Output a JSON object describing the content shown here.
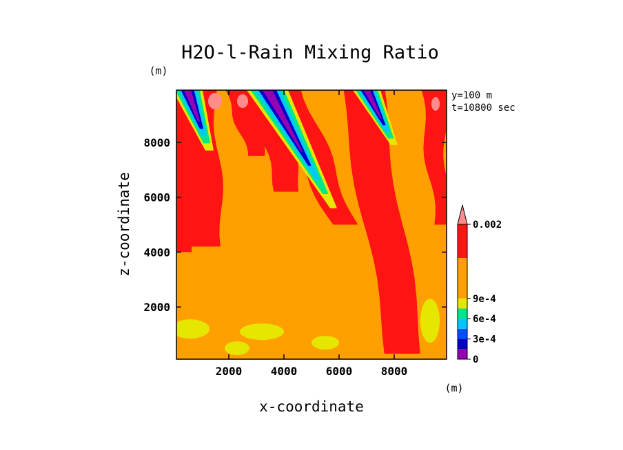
{
  "chart_data": {
    "type": "heatmap",
    "title": "H2O-l-Rain Mixing Ratio",
    "xlabel": "x-coordinate",
    "ylabel": "z-coordinate",
    "x_unit": "(m)",
    "y_unit": "(m)",
    "xlim": [
      100,
      9900
    ],
    "ylim": [
      100,
      9900
    ],
    "x_ticks": [
      "2000",
      "4000",
      "6000",
      "8000"
    ],
    "y_ticks": [
      "2000",
      "4000",
      "6000",
      "8000"
    ],
    "annotations": [
      "y=100 m",
      "t=10800 sec"
    ],
    "colorbar": {
      "min": 0,
      "max": 0.002,
      "levels": [
        0,
        0.00015,
        0.0003,
        0.00045,
        0.0006,
        0.00075,
        0.0009,
        0.0015,
        0.002
      ],
      "labels": [
        "0",
        "3e-4",
        "6e-4",
        "9e-4",
        "0.002"
      ],
      "label_values": [
        0,
        0.0003,
        0.0006,
        0.0009,
        0.002
      ],
      "colors": [
        "#9600b4",
        "#0000c8",
        "#0050ff",
        "#00c8ff",
        "#00e68c",
        "#e6e600",
        "#ffa000",
        "#ff1414",
        "#ff8c8c"
      ],
      "extend": "max"
    },
    "field_description": {
      "background_level": 0.0009,
      "max_bands": [
        {
          "x_top": 700,
          "x_bottom": 1200,
          "z_top": 9900,
          "z_bottom": 4200
        },
        {
          "x_top": 3200,
          "x_bottom": 4200,
          "z_top": 9900,
          "z_bottom": 6200
        },
        {
          "x_top": 4000,
          "x_bottom": 6200,
          "z_top": 9900,
          "z_bottom": 5000
        },
        {
          "x_top": 6800,
          "x_bottom": 8400,
          "z_top": 9900,
          "z_bottom": 300
        },
        {
          "x_top": 9400,
          "x_bottom": 9700,
          "z_top": 9900,
          "z_bottom": 5000
        }
      ],
      "min_streaks": [
        {
          "x_top": 500,
          "x_bottom": 1300,
          "z_top": 9900,
          "z_bottom": 7700
        },
        {
          "x_top": 3400,
          "x_bottom": 5800,
          "z_top": 9900,
          "z_bottom": 5600
        },
        {
          "x_top": 7000,
          "x_bottom": 8000,
          "z_top": 9900,
          "z_bottom": 7900
        }
      ]
    }
  }
}
